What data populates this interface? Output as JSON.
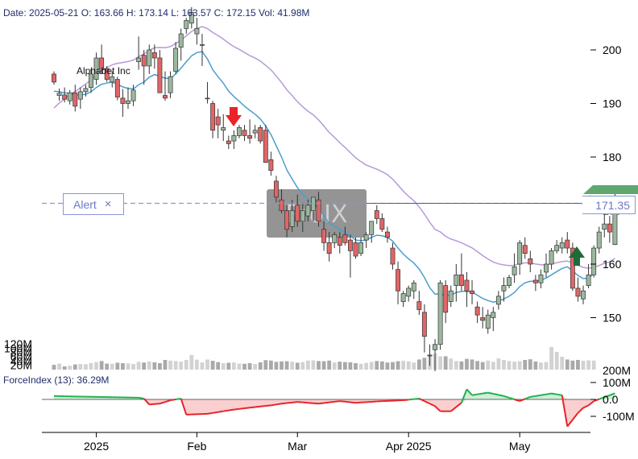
{
  "header": {
    "date_label": "Date:",
    "date": "2025-05-21",
    "open_label": "O:",
    "open": "163.66",
    "high_label": "H:",
    "high": "173.14",
    "low_label": "L:",
    "low": "163.57",
    "close_label": "C:",
    "close": "172.15",
    "vol_label": "Vol:",
    "vol": "41.98M"
  },
  "ticker_name": "Alphabet Inc",
  "indicator": {
    "label": "ForceIndex (13):",
    "value": "36.29M"
  },
  "alert": {
    "label": "Alert",
    "close_glyph": "×",
    "price": 171.35,
    "price_text": "171.35"
  },
  "watermark": "ProIX",
  "colors": {
    "up": "#9cb89f",
    "down": "#e06666",
    "ema_short": "#4a9ecf",
    "ema_long": "#b79ad8",
    "alert": "#8d95d6",
    "force_pos": "#22b14c",
    "force_neg": "#e8232a",
    "sell_arrow": "#e8232a",
    "buy_arrow": "#1e6b3a"
  },
  "chart_data": {
    "type": "candlestick",
    "x": [
      "2024-12-20",
      "2024-12-23",
      "2024-12-24",
      "2024-12-26",
      "2024-12-27",
      "2024-12-30",
      "2024-12-31",
      "2025-01-02",
      "2025-01-03",
      "2025-01-06",
      "2025-01-07",
      "2025-01-08",
      "2025-01-10",
      "2025-01-13",
      "2025-01-14",
      "2025-01-15",
      "2025-01-16",
      "2025-01-17",
      "2025-01-21",
      "2025-01-22",
      "2025-01-23",
      "2025-01-24",
      "2025-01-27",
      "2025-01-28",
      "2025-01-29",
      "2025-01-30",
      "2025-01-31",
      "2025-02-03",
      "2025-02-04",
      "2025-02-05",
      "2025-02-06",
      "2025-02-07",
      "2025-02-10",
      "2025-02-11",
      "2025-02-12",
      "2025-02-13",
      "2025-02-14",
      "2025-02-18",
      "2025-02-19",
      "2025-02-20",
      "2025-02-21",
      "2025-02-24",
      "2025-02-25",
      "2025-02-26",
      "2025-02-27",
      "2025-02-28",
      "2025-03-03",
      "2025-03-04",
      "2025-03-05",
      "2025-03-06",
      "2025-03-07",
      "2025-03-10",
      "2025-03-11",
      "2025-03-12",
      "2025-03-13",
      "2025-03-14",
      "2025-03-17",
      "2025-03-18",
      "2025-03-19",
      "2025-03-20",
      "2025-03-21",
      "2025-03-24",
      "2025-03-25",
      "2025-03-26",
      "2025-03-27",
      "2025-03-28",
      "2025-03-31",
      "2025-04-01",
      "2025-04-02",
      "2025-04-03",
      "2025-04-04",
      "2025-04-07",
      "2025-04-08",
      "2025-04-09",
      "2025-04-10",
      "2025-04-11",
      "2025-04-14",
      "2025-04-15",
      "2025-04-16",
      "2025-04-17",
      "2025-04-21",
      "2025-04-22",
      "2025-04-23",
      "2025-04-24",
      "2025-04-25",
      "2025-04-28",
      "2025-04-29",
      "2025-04-30",
      "2025-05-01",
      "2025-05-02",
      "2025-05-05",
      "2025-05-06",
      "2025-05-07",
      "2025-05-08",
      "2025-05-09",
      "2025-05-12",
      "2025-05-13",
      "2025-05-14",
      "2025-05-15",
      "2025-05-16",
      "2025-05-19",
      "2025-05-20",
      "2025-05-21"
    ],
    "ohlc": [
      [
        195.5,
        196,
        193.5,
        194
      ],
      [
        191.5,
        192.8,
        190.5,
        191.9
      ],
      [
        191.6,
        193,
        190.2,
        190.8
      ],
      [
        190.5,
        192.5,
        189.8,
        192
      ],
      [
        192,
        193.5,
        188.5,
        189.5
      ],
      [
        190.8,
        193,
        189,
        192.2
      ],
      [
        192.2,
        193.5,
        191.3,
        192.8
      ],
      [
        193,
        196.5,
        192,
        195.5
      ],
      [
        194.5,
        199.5,
        193.5,
        198.5
      ],
      [
        198.5,
        201,
        195.5,
        196.5
      ],
      [
        196.5,
        197,
        194,
        194.5
      ],
      [
        194,
        196,
        193,
        195
      ],
      [
        194.5,
        195,
        190.6,
        191.2
      ],
      [
        191,
        192.7,
        187.5,
        190
      ],
      [
        190,
        193,
        189,
        190.5
      ],
      [
        190.5,
        193.5,
        189.5,
        192.5
      ],
      [
        197.8,
        202.5,
        196.3,
        198.5
      ],
      [
        199,
        200,
        193.5,
        197
      ],
      [
        197,
        201,
        195.5,
        200
      ],
      [
        199.5,
        201,
        196.5,
        198.5
      ],
      [
        198.5,
        200,
        192,
        192
      ],
      [
        191.5,
        196,
        190.5,
        191
      ],
      [
        192,
        196,
        191,
        195
      ],
      [
        196,
        201.5,
        195.5,
        200.3
      ],
      [
        200.5,
        204,
        198,
        203
      ],
      [
        204,
        206,
        203,
        205.5
      ],
      [
        205,
        208,
        204,
        207
      ],
      [
        203,
        206,
        201,
        204
      ],
      [
        201,
        203,
        197,
        201
      ],
      [
        191,
        194,
        190,
        191
      ],
      [
        190,
        190.5,
        183.5,
        185
      ],
      [
        187.5,
        189,
        183.5,
        186
      ],
      [
        185,
        188,
        183,
        185.5
      ],
      [
        183,
        184,
        181.5,
        182.5
      ],
      [
        183,
        185,
        181.5,
        184
      ],
      [
        184,
        186,
        183.5,
        185.5
      ],
      [
        185,
        186,
        183,
        184
      ],
      [
        184,
        187,
        182.5,
        183.5
      ],
      [
        184.5,
        186,
        183.5,
        185
      ],
      [
        185.5,
        186,
        182.5,
        183
      ],
      [
        185,
        186,
        179,
        179
      ],
      [
        179.5,
        181,
        176.5,
        177.5
      ],
      [
        175.5,
        176.5,
        171.5,
        172.5
      ],
      [
        172,
        174,
        169.5,
        170
      ],
      [
        170,
        171,
        165,
        166.5
      ],
      [
        167,
        172,
        166,
        170
      ],
      [
        171,
        173,
        167,
        168
      ],
      [
        168,
        171.5,
        166,
        170
      ],
      [
        169,
        172,
        168,
        171
      ],
      [
        170,
        172,
        168,
        172.5
      ],
      [
        172,
        173.5,
        167,
        168
      ],
      [
        166.5,
        168,
        162.5,
        164
      ],
      [
        164,
        166,
        160.5,
        162
      ],
      [
        164,
        166,
        163,
        165.5
      ],
      [
        165,
        166,
        162,
        163.5
      ],
      [
        165.5,
        167,
        163.5,
        164
      ],
      [
        164.5,
        165.5,
        157.5,
        162.5
      ],
      [
        164,
        165,
        161,
        161.5
      ],
      [
        162,
        165,
        161.5,
        164
      ],
      [
        164.5,
        166,
        163,
        165.5
      ],
      [
        165.5,
        168,
        164,
        168
      ],
      [
        170,
        171,
        167.5,
        168.5
      ],
      [
        168.5,
        169.5,
        166,
        166.5
      ],
      [
        166,
        167,
        164,
        165
      ],
      [
        163,
        164,
        159,
        160
      ],
      [
        159,
        160.5,
        152.5,
        155
      ],
      [
        153,
        155,
        152,
        154.5
      ],
      [
        154,
        156,
        153,
        155.5
      ],
      [
        155,
        157,
        153.5,
        156.5
      ],
      [
        153,
        155,
        150.5,
        151.5
      ],
      [
        151,
        152.5,
        143.5,
        146.5
      ],
      [
        143,
        145,
        141,
        143
      ],
      [
        144,
        146,
        140,
        145
      ],
      [
        145,
        157,
        144,
        156.5
      ],
      [
        156,
        157,
        149,
        151
      ],
      [
        153,
        156,
        152,
        155
      ],
      [
        156,
        160,
        153,
        158
      ],
      [
        158,
        162,
        155,
        156
      ],
      [
        157,
        158.5,
        152,
        155
      ],
      [
        155,
        157,
        152.5,
        154.5
      ],
      [
        152,
        153,
        149,
        150.5
      ],
      [
        150,
        152,
        148,
        149.5
      ],
      [
        148,
        151.5,
        147,
        150.5
      ],
      [
        150,
        152,
        147.5,
        151
      ],
      [
        152.5,
        155,
        151.5,
        154
      ],
      [
        155,
        157.5,
        153,
        156
      ],
      [
        156,
        158,
        155.5,
        157.5
      ],
      [
        158,
        162,
        156.5,
        159.5
      ],
      [
        160,
        164.5,
        158,
        164
      ],
      [
        163.5,
        165,
        161,
        162
      ],
      [
        161,
        162.5,
        158.5,
        160
      ],
      [
        157,
        158,
        155,
        156.5
      ],
      [
        156.5,
        159,
        155.5,
        158
      ],
      [
        158.5,
        162,
        157.5,
        160
      ],
      [
        160,
        163,
        159,
        162.5
      ],
      [
        162.5,
        164.5,
        162,
        163.5
      ],
      [
        163,
        165,
        162,
        164
      ],
      [
        164.5,
        166,
        162,
        163
      ],
      [
        163,
        164,
        155,
        155.5
      ],
      [
        155.5,
        157.5,
        153,
        154
      ],
      [
        153.5,
        156,
        152.5,
        155
      ],
      [
        156,
        160,
        155.5,
        158
      ],
      [
        158,
        163.5,
        157.5,
        163
      ],
      [
        163,
        167,
        162,
        166
      ],
      [
        166.5,
        169.5,
        165,
        167.5
      ],
      [
        167.5,
        169,
        164,
        166
      ],
      [
        163.66,
        173.14,
        163.57,
        172.15
      ]
    ],
    "volume_m": [
      22,
      28,
      15,
      18,
      24,
      26,
      25,
      30,
      35,
      40,
      28,
      27,
      32,
      30,
      29,
      26,
      36,
      33,
      38,
      34,
      30,
      45,
      42,
      40,
      37,
      45,
      68,
      46,
      33,
      47,
      41,
      35,
      30,
      32,
      33,
      28,
      27,
      30,
      26,
      34,
      44,
      42,
      36,
      38,
      39,
      37,
      32,
      35,
      42,
      43,
      40,
      39,
      42,
      33,
      37,
      35,
      34,
      30,
      27,
      31,
      36,
      40,
      38,
      33,
      35,
      39,
      41,
      38,
      33,
      47,
      55,
      72,
      75,
      62,
      62,
      51,
      40,
      38,
      50,
      47,
      40,
      35,
      42,
      36,
      52,
      45,
      40,
      37,
      39,
      45,
      48,
      38,
      33,
      35,
      105,
      82,
      60,
      47,
      42,
      45,
      41,
      43,
      42
    ],
    "ema_short": [
      192.3,
      192.2,
      192.0,
      191.9,
      191.6,
      191.6,
      191.7,
      192.2,
      193.0,
      193.6,
      193.8,
      194.0,
      193.6,
      193.1,
      192.8,
      192.7,
      193.5,
      194.0,
      194.9,
      195.4,
      195.1,
      194.7,
      194.7,
      195.5,
      196.6,
      197.8,
      198.9,
      199.5,
      199.7,
      198.3,
      196.3,
      195.0,
      193.8,
      192.3,
      191.3,
      190.4,
      189.5,
      188.7,
      188.0,
      187.1,
      185.8,
      184.2,
      182.1,
      180.0,
      177.6,
      175.9,
      174.3,
      173.0,
      172.1,
      171.4,
      170.4,
      169.0,
      167.6,
      167.1,
      166.4,
      165.9,
      165.3,
      164.5,
      164.4,
      164.5,
      165.0,
      165.4,
      165.3,
      165.0,
      164.3,
      163.0,
      161.9,
      161.0,
      160.2,
      159.1,
      157.5,
      155.6,
      154.4,
      154.5,
      154.1,
      154.2,
      154.7,
      154.9,
      154.9,
      154.8,
      154.2,
      153.6,
      153.2,
      152.9,
      153.1,
      153.5,
      154.0,
      154.7,
      155.8,
      156.5,
      156.8,
      156.8,
      157.0,
      157.4,
      158.0,
      158.6,
      159.2,
      159.5,
      158.7,
      157.9,
      157.3,
      157.4,
      158.2
    ]
  }
}
